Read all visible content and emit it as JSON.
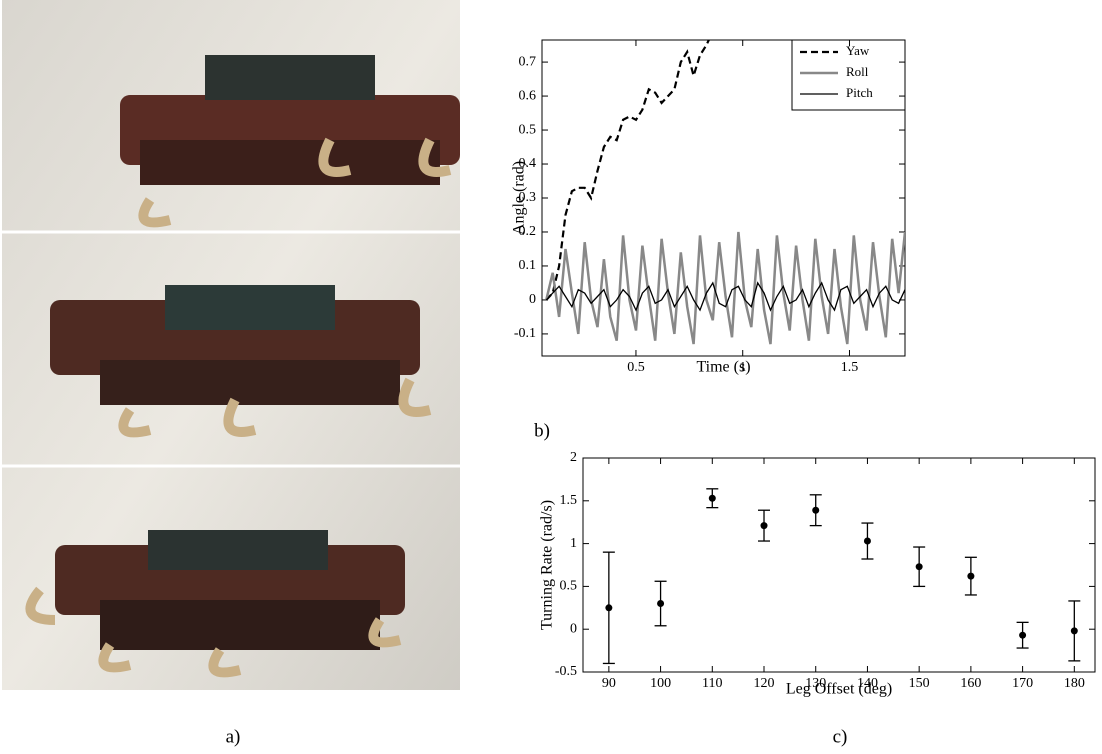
{
  "panel_labels": [
    "a)",
    "b)",
    "c)"
  ],
  "chart_data": [
    {
      "type": "line",
      "xlabel": "Time (s)",
      "ylabel": "Angle (rad)",
      "xlim": [
        0.06,
        1.76
      ],
      "ylim": [
        -0.165,
        0.765
      ],
      "xticks": [
        0.5,
        1,
        1.5
      ],
      "yticks": [
        -0.1,
        0,
        0.1,
        0.2,
        0.3,
        0.4,
        0.5,
        0.6,
        0.7
      ],
      "legend": "upper right",
      "x": [
        0.08,
        0.11,
        0.14,
        0.17,
        0.2,
        0.23,
        0.26,
        0.29,
        0.32,
        0.35,
        0.38,
        0.41,
        0.44,
        0.47,
        0.5,
        0.53,
        0.56,
        0.59,
        0.62,
        0.65,
        0.68,
        0.71,
        0.74,
        0.77,
        0.8,
        0.83,
        0.86,
        0.89,
        0.92,
        0.95,
        0.98,
        1.01,
        1.04,
        1.07,
        1.1,
        1.13,
        1.16,
        1.19,
        1.22,
        1.25,
        1.28,
        1.31,
        1.34,
        1.37,
        1.4,
        1.43,
        1.46,
        1.49,
        1.52,
        1.55,
        1.58,
        1.61,
        1.64,
        1.67,
        1.7,
        1.73,
        1.76
      ],
      "series": [
        {
          "name": "Yaw",
          "color": "#000000",
          "dash": "dashed",
          "values": [
            0.0,
            0.02,
            0.1,
            0.25,
            0.32,
            0.33,
            0.33,
            0.3,
            0.38,
            0.45,
            0.48,
            0.47,
            0.53,
            0.54,
            0.53,
            0.56,
            0.62,
            0.61,
            0.58,
            0.6,
            0.62,
            0.7,
            0.73,
            0.66,
            0.72,
            0.75,
            0.79,
            null,
            null,
            null,
            null,
            null,
            null,
            null,
            null,
            null,
            null,
            null,
            null,
            null,
            null,
            null,
            null,
            null,
            null,
            null,
            null,
            null,
            null,
            null,
            null,
            null,
            null,
            null,
            null,
            null,
            null
          ]
        },
        {
          "name": "Roll",
          "color": "#888888",
          "dash": "solid",
          "values": [
            0.0,
            0.08,
            -0.05,
            0.15,
            0.02,
            -0.1,
            0.17,
            0.0,
            -0.08,
            0.12,
            -0.05,
            -0.12,
            0.19,
            0.0,
            -0.09,
            0.16,
            0.01,
            -0.12,
            0.18,
            0.02,
            -0.1,
            0.14,
            -0.02,
            -0.13,
            0.19,
            0.0,
            -0.06,
            0.17,
            0.01,
            -0.11,
            0.2,
            0.0,
            -0.08,
            0.15,
            -0.03,
            -0.13,
            0.19,
            0.02,
            -0.09,
            0.16,
            0.0,
            -0.12,
            0.18,
            0.01,
            -0.1,
            0.15,
            -0.02,
            -0.13,
            0.19,
            0.0,
            -0.09,
            0.17,
            0.01,
            -0.11,
            0.18,
            0.02,
            0.2
          ]
        },
        {
          "name": "Pitch",
          "color": "#000000",
          "dash": "solid",
          "values": [
            0.0,
            0.02,
            0.04,
            0.01,
            -0.02,
            0.03,
            0.02,
            -0.01,
            0.01,
            0.03,
            -0.02,
            0.0,
            0.03,
            0.01,
            -0.03,
            0.02,
            0.04,
            -0.01,
            0.0,
            0.03,
            -0.02,
            0.01,
            0.04,
            0.0,
            -0.03,
            0.02,
            0.05,
            -0.01,
            -0.02,
            0.03,
            0.04,
            0.0,
            -0.02,
            0.05,
            0.02,
            -0.03,
            0.01,
            0.04,
            -0.01,
            0.0,
            0.03,
            -0.02,
            0.02,
            0.05,
            0.0,
            -0.03,
            0.03,
            0.04,
            -0.01,
            0.01,
            0.03,
            -0.02,
            0.02,
            0.04,
            0.0,
            -0.01,
            0.03
          ]
        }
      ]
    },
    {
      "type": "errorbar",
      "xlabel": "Leg Offset (deg)",
      "ylabel": "Turning Rate (rad/s)",
      "xlim": [
        85,
        184
      ],
      "ylim": [
        -0.5,
        2
      ],
      "xticks": [
        90,
        100,
        110,
        120,
        130,
        140,
        150,
        160,
        170,
        180
      ],
      "yticks": [
        -0.5,
        0,
        0.5,
        1,
        1.5,
        2
      ],
      "color": "#000000",
      "x": [
        90,
        100,
        110,
        120,
        130,
        140,
        150,
        160,
        170,
        180
      ],
      "values": [
        0.25,
        0.3,
        1.53,
        1.21,
        1.39,
        1.03,
        0.73,
        0.62,
        -0.07,
        -0.02
      ],
      "errors": [
        0.65,
        0.26,
        0.11,
        0.18,
        0.18,
        0.21,
        0.23,
        0.22,
        0.15,
        0.35
      ]
    }
  ]
}
